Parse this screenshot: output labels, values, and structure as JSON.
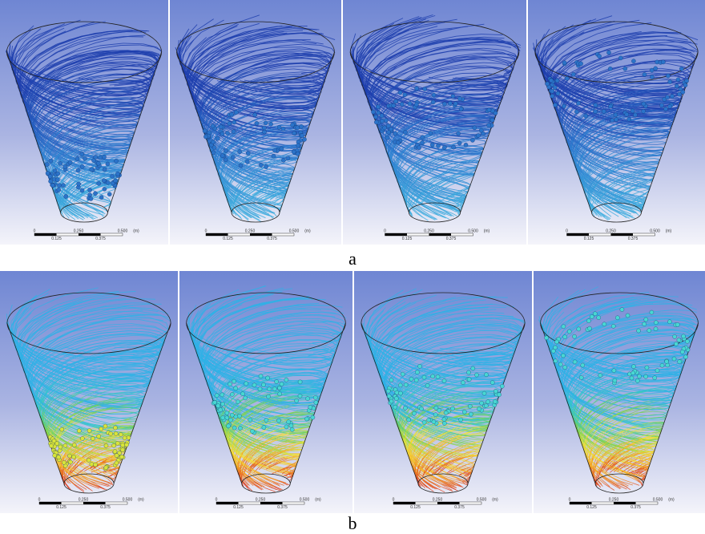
{
  "figure": {
    "rows": [
      {
        "label": "a",
        "palette": "blue",
        "panels": [
          {
            "particle_level": 0.78
          },
          {
            "particle_level": 0.55
          },
          {
            "particle_level": 0.42
          },
          {
            "particle_level": 0.22
          }
        ]
      },
      {
        "label": "b",
        "palette": "rainbow",
        "panels": [
          {
            "particle_level": 0.78
          },
          {
            "particle_level": 0.52
          },
          {
            "particle_level": 0.45
          },
          {
            "particle_level": 0.15
          }
        ]
      }
    ],
    "scale_bar": {
      "top_labels": [
        "0",
        "0.250",
        "0.500",
        "(m)"
      ],
      "bottom_labels": [
        "0.125",
        "0.375"
      ]
    },
    "colors": {
      "blue_dark": "#1f3fae",
      "blue_light": "#3fb2e0",
      "rainbow": [
        "#d8241c",
        "#f5a623",
        "#f2e33a",
        "#7bd34a",
        "#35c8c8",
        "#2fb2e6"
      ],
      "particle_blue": "#2b73c9",
      "particle_cyan": "#48d7d2",
      "particle_yellow": "#d8e43a"
    }
  }
}
